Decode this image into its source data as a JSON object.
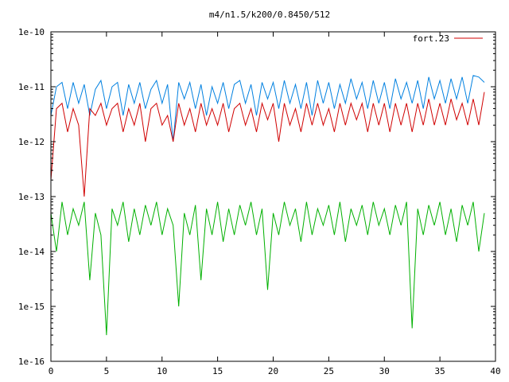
{
  "chart_data": {
    "type": "line",
    "title": "m4/n1.5/k200/0.8450/512",
    "xlabel": "",
    "ylabel": "",
    "xlim": [
      0,
      40
    ],
    "ylim": [
      1e-16,
      1e-10
    ],
    "y_scale": "log",
    "x_ticks": [
      "0",
      "5",
      "10",
      "15",
      "20",
      "25",
      "30",
      "35",
      "40"
    ],
    "y_ticks": [
      "1e-16",
      "1e-15",
      "1e-14",
      "1e-13",
      "1e-12",
      "1e-11",
      "1e-10"
    ],
    "grid": false,
    "legend_position": "top-right",
    "colors": {
      "blue": "#0080e0",
      "red": "#d00000",
      "green": "#00b000"
    },
    "series": [
      {
        "name": "",
        "color": "#0080e0",
        "x": [
          0,
          0.5,
          1,
          1.5,
          2,
          2.5,
          3,
          3.5,
          4,
          4.5,
          5,
          5.5,
          6,
          6.5,
          7,
          7.5,
          8,
          8.5,
          9,
          9.5,
          10,
          10.5,
          11,
          11.5,
          12,
          12.5,
          13,
          13.5,
          14,
          14.5,
          15,
          15.5,
          16,
          16.5,
          17,
          17.5,
          18,
          18.5,
          19,
          19.5,
          20,
          20.5,
          21,
          21.5,
          22,
          22.5,
          23,
          23.5,
          24,
          24.5,
          25,
          25.5,
          26,
          26.5,
          27,
          27.5,
          28,
          28.5,
          29,
          29.5,
          30,
          30.5,
          31,
          31.5,
          32,
          32.5,
          33,
          33.5,
          34,
          34.5,
          35,
          35.5,
          36,
          36.5,
          37,
          37.5,
          38,
          38.5,
          39
        ],
        "y": [
          3e-12,
          1e-11,
          1.2e-11,
          4e-12,
          1.2e-11,
          5e-12,
          1.1e-11,
          3e-12,
          9e-12,
          1.3e-11,
          4e-12,
          1e-11,
          1.2e-11,
          3e-12,
          1.1e-11,
          5e-12,
          1.2e-11,
          4e-12,
          9e-12,
          1.3e-11,
          5e-12,
          1.1e-11,
          1e-12,
          1.2e-11,
          6e-12,
          1.2e-11,
          4e-12,
          1.1e-11,
          3e-12,
          1e-11,
          5e-12,
          1.2e-11,
          4e-12,
          1.1e-11,
          1.3e-11,
          5e-12,
          1.1e-11,
          3e-12,
          1.2e-11,
          6e-12,
          1.2e-11,
          4e-12,
          1.3e-11,
          5e-12,
          1.1e-11,
          4e-12,
          1.2e-11,
          3e-12,
          1.3e-11,
          5e-12,
          1.2e-11,
          4e-12,
          1.1e-11,
          5e-12,
          1.4e-11,
          6e-12,
          1.2e-11,
          4e-12,
          1.3e-11,
          5e-12,
          1.2e-11,
          4e-12,
          1.4e-11,
          6e-12,
          1.2e-11,
          5e-12,
          1.3e-11,
          4e-12,
          1.5e-11,
          6e-12,
          1.3e-11,
          5e-12,
          1.4e-11,
          6e-12,
          1.5e-11,
          5e-12,
          1.6e-11,
          1.5e-11,
          1.2e-11
        ]
      },
      {
        "name": "fort.23",
        "color": "#d00000",
        "x": [
          0,
          0.5,
          1,
          1.5,
          2,
          2.5,
          3,
          3.5,
          4,
          4.5,
          5,
          5.5,
          6,
          6.5,
          7,
          7.5,
          8,
          8.5,
          9,
          9.5,
          10,
          10.5,
          11,
          11.5,
          12,
          12.5,
          13,
          13.5,
          14,
          14.5,
          15,
          15.5,
          16,
          16.5,
          17,
          17.5,
          18,
          18.5,
          19,
          19.5,
          20,
          20.5,
          21,
          21.5,
          22,
          22.5,
          23,
          23.5,
          24,
          24.5,
          25,
          25.5,
          26,
          26.5,
          27,
          27.5,
          28,
          28.5,
          29,
          29.5,
          30,
          30.5,
          31,
          31.5,
          32,
          32.5,
          33,
          33.5,
          34,
          34.5,
          35,
          35.5,
          36,
          36.5,
          37,
          37.5,
          38,
          38.5,
          39
        ],
        "y": [
          2e-13,
          4e-12,
          5e-12,
          1.5e-12,
          4e-12,
          2e-12,
          1e-13,
          4e-12,
          3e-12,
          5e-12,
          2e-12,
          4e-12,
          5e-12,
          1.5e-12,
          4e-12,
          2e-12,
          5e-12,
          1e-12,
          4e-12,
          5e-12,
          2e-12,
          3e-12,
          1e-12,
          5e-12,
          2e-12,
          4e-12,
          1.5e-12,
          5e-12,
          2e-12,
          4e-12,
          2e-12,
          5e-12,
          1.5e-12,
          4e-12,
          5e-12,
          2e-12,
          4e-12,
          1.5e-12,
          5e-12,
          2.5e-12,
          5e-12,
          1e-12,
          5e-12,
          2e-12,
          4e-12,
          1.5e-12,
          5e-12,
          2e-12,
          5e-12,
          2e-12,
          4e-12,
          1.5e-12,
          5e-12,
          2e-12,
          5e-12,
          2.5e-12,
          5e-12,
          1.5e-12,
          5e-12,
          2e-12,
          5e-12,
          1.5e-12,
          5e-12,
          2e-12,
          5e-12,
          1.5e-12,
          5e-12,
          2e-12,
          6e-12,
          2e-12,
          5e-12,
          2e-12,
          6e-12,
          2.5e-12,
          5e-12,
          2e-12,
          6e-12,
          2e-12,
          8e-12
        ]
      },
      {
        "name": "",
        "color": "#00b000",
        "x": [
          0,
          0.5,
          1,
          1.5,
          2,
          2.5,
          3,
          3.5,
          4,
          4.5,
          5,
          5.5,
          6,
          6.5,
          7,
          7.5,
          8,
          8.5,
          9,
          9.5,
          10,
          10.5,
          11,
          11.5,
          12,
          12.5,
          13,
          13.5,
          14,
          14.5,
          15,
          15.5,
          16,
          16.5,
          17,
          17.5,
          18,
          18.5,
          19,
          19.5,
          20,
          20.5,
          21,
          21.5,
          22,
          22.5,
          23,
          23.5,
          24,
          24.5,
          25,
          25.5,
          26,
          26.5,
          27,
          27.5,
          28,
          28.5,
          29,
          29.5,
          30,
          30.5,
          31,
          31.5,
          32,
          32.5,
          33,
          33.5,
          34,
          34.5,
          35,
          35.5,
          36,
          36.5,
          37,
          37.5,
          38,
          38.5,
          39
        ],
        "y": [
          5e-14,
          1e-14,
          8e-14,
          2e-14,
          6e-14,
          3e-14,
          8e-14,
          3e-15,
          5e-14,
          2e-14,
          3e-16,
          6e-14,
          3e-14,
          8e-14,
          1.5e-14,
          6e-14,
          2e-14,
          7e-14,
          3e-14,
          8e-14,
          2e-14,
          6e-14,
          3e-14,
          1e-15,
          5e-14,
          2e-14,
          7e-14,
          3e-15,
          6e-14,
          2e-14,
          8e-14,
          1.5e-14,
          6e-14,
          2e-14,
          7e-14,
          3e-14,
          8e-14,
          2e-14,
          6e-14,
          2e-15,
          5e-14,
          2e-14,
          8e-14,
          3e-14,
          6e-14,
          1.5e-14,
          8e-14,
          2e-14,
          6e-14,
          3e-14,
          7e-14,
          2e-14,
          8e-14,
          1.5e-14,
          6e-14,
          3e-14,
          7e-14,
          2e-14,
          8e-14,
          3e-14,
          6e-14,
          2e-14,
          7e-14,
          3e-14,
          8e-14,
          4e-16,
          6e-14,
          2e-14,
          7e-14,
          3e-14,
          8e-14,
          2e-14,
          6e-14,
          1.5e-14,
          7e-14,
          3e-14,
          8e-14,
          1e-14,
          5e-14
        ]
      }
    ]
  }
}
